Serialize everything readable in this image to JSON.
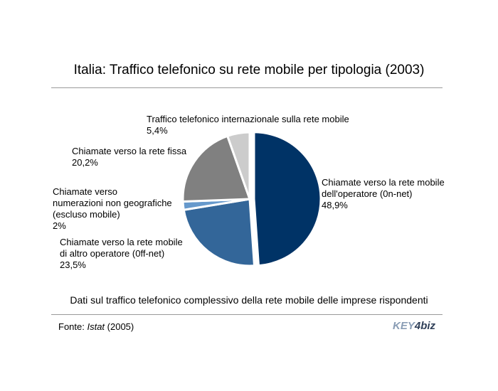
{
  "title": "Italia: Traffico telefonico su rete mobile per tipologia (2003)",
  "subtitle": "Dati sul traffico telefonico complessivo della rete mobile delle imprese rispondenti",
  "source": {
    "prefix": "Fonte: ",
    "name": "Istat",
    "suffix": " (2005)"
  },
  "logo": {
    "part1": "KEY",
    "part2": "4",
    "part3": "biz"
  },
  "chart_data": {
    "type": "pie",
    "title": "Italia: Traffico telefonico su rete mobile per tipologia (2003)",
    "unit": "%",
    "slices": [
      {
        "label_lines": [
          "Chiamate verso la rete mobile",
          "dell'operatore (0n-net)"
        ],
        "value": 48.9,
        "value_label": "48,9%",
        "color": "#003366",
        "exploded": true
      },
      {
        "label_lines": [
          "Chiamate verso la rete mobile",
          "di altro operatore (0ff-net)"
        ],
        "value": 23.5,
        "value_label": "23,5%",
        "color": "#336699",
        "exploded": false
      },
      {
        "label_lines": [
          "Chiamate verso",
          "numerazioni non geografiche",
          "(escluso mobile)"
        ],
        "value": 2,
        "value_label": "2%",
        "color": "#6699cc",
        "exploded": false
      },
      {
        "label_lines": [
          "Chiamate verso la rete fissa"
        ],
        "value": 20.2,
        "value_label": "20,2%",
        "color": "#808080",
        "exploded": false
      },
      {
        "label_lines": [
          "Traffico telefonico internazionale sulla rete mobile"
        ],
        "value": 5.4,
        "value_label": "5,4%",
        "color": "#cccccc",
        "exploded": false
      }
    ]
  }
}
